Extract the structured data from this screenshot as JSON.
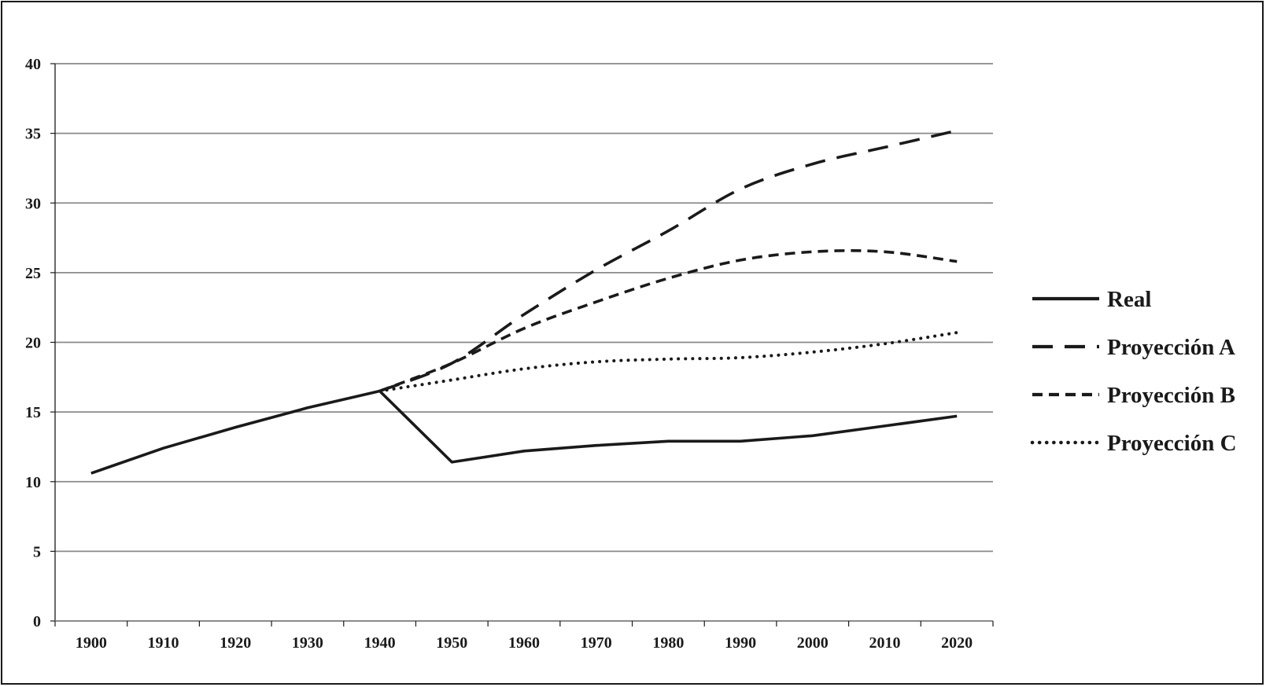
{
  "chart_data": {
    "type": "line",
    "title": "",
    "xlabel": "",
    "ylabel": "",
    "x": [
      1900,
      1910,
      1920,
      1930,
      1940,
      1950,
      1960,
      1970,
      1980,
      1990,
      2000,
      2010,
      2020
    ],
    "xlim": [
      1895,
      2025
    ],
    "ylim": [
      0,
      40
    ],
    "yticks": [
      0,
      5,
      10,
      15,
      20,
      25,
      30,
      35,
      40
    ],
    "grid": "horizontal",
    "legend_position": "right",
    "series": [
      {
        "name": "Real",
        "style": "solid",
        "points": [
          [
            1900,
            10.6
          ],
          [
            1910,
            12.4
          ],
          [
            1920,
            13.9
          ],
          [
            1930,
            15.3
          ],
          [
            1940,
            16.5
          ],
          [
            1950,
            11.4
          ],
          [
            1960,
            12.2
          ],
          [
            1970,
            12.6
          ],
          [
            1980,
            12.9
          ],
          [
            1990,
            12.9
          ],
          [
            2000,
            13.3
          ],
          [
            2010,
            14.0
          ],
          [
            2020,
            14.7
          ]
        ]
      },
      {
        "name": "Proyección A",
        "style": "longdash",
        "points": [
          [
            1940,
            16.5
          ],
          [
            1950,
            18.5
          ],
          [
            1960,
            22.0
          ],
          [
            1970,
            25.2
          ],
          [
            1980,
            28.0
          ],
          [
            1990,
            31.0
          ],
          [
            2000,
            32.8
          ],
          [
            2010,
            34.0
          ],
          [
            2020,
            35.2
          ]
        ]
      },
      {
        "name": "Proyección B",
        "style": "dash",
        "points": [
          [
            1940,
            16.5
          ],
          [
            1950,
            18.5
          ],
          [
            1960,
            21.0
          ],
          [
            1970,
            22.9
          ],
          [
            1980,
            24.6
          ],
          [
            1990,
            25.9
          ],
          [
            2000,
            26.5
          ],
          [
            2010,
            26.5
          ],
          [
            2020,
            25.8
          ]
        ]
      },
      {
        "name": "Proyección C",
        "style": "dotted",
        "points": [
          [
            1940,
            16.5
          ],
          [
            1950,
            17.3
          ],
          [
            1960,
            18.1
          ],
          [
            1970,
            18.6
          ],
          [
            1980,
            18.8
          ],
          [
            1990,
            18.9
          ],
          [
            2000,
            19.3
          ],
          [
            2010,
            19.9
          ],
          [
            2020,
            20.7
          ]
        ]
      }
    ]
  },
  "colors": {
    "line": "#1a1a1a",
    "grid": "#8a8a8a",
    "axis": "#1a1a1a"
  }
}
